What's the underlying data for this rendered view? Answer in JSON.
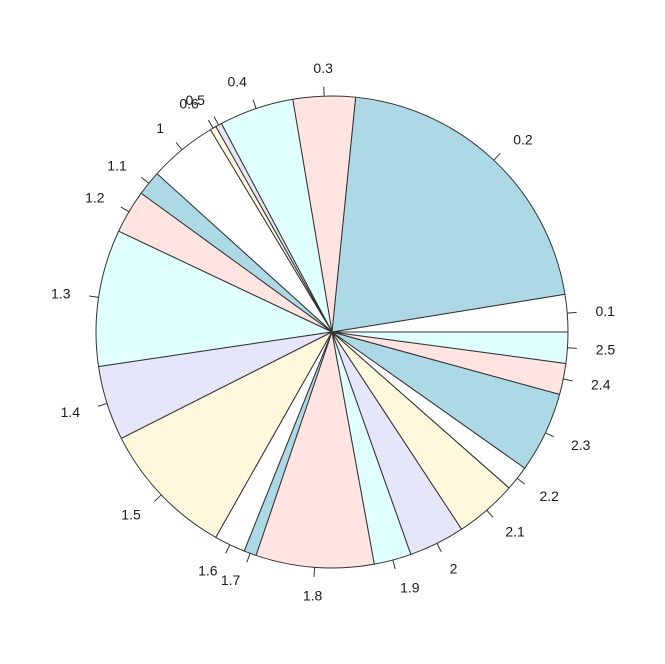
{
  "chart_data": {
    "type": "pie",
    "title": "",
    "start_angle_deg": 0,
    "direction": "counterclockwise",
    "labels": [
      "0.1",
      "0.2",
      "0.3",
      "0.4",
      "0.5",
      "0.6",
      "1",
      "1.1",
      "1.2",
      "1.3",
      "1.4",
      "1.5",
      "1.6",
      "1.7",
      "1.8",
      "1.9",
      "2",
      "2.1",
      "2.2",
      "2.3",
      "2.4",
      "2.5"
    ],
    "values": [
      6,
      49,
      10,
      12,
      1,
      1,
      11,
      4,
      7,
      22,
      12,
      22,
      5,
      2,
      19,
      6,
      9,
      10,
      4,
      13,
      5,
      5
    ],
    "colors": [
      "#FFFFFF",
      "#ADD8E6",
      "#FFE4E1",
      "#E0FFFF",
      "#E6E6FA",
      "#FFF8DC",
      "#FFFFFF",
      "#ADD8E6",
      "#FFE4E1",
      "#E0FFFF",
      "#E6E6FA",
      "#FFF8DC",
      "#FFFFFF",
      "#ADD8E6",
      "#FFE4E1",
      "#E0FFFF",
      "#E6E6FA",
      "#FFF8DC",
      "#FFFFFF",
      "#ADD8E6",
      "#FFE4E1",
      "#E0FFFF"
    ]
  }
}
